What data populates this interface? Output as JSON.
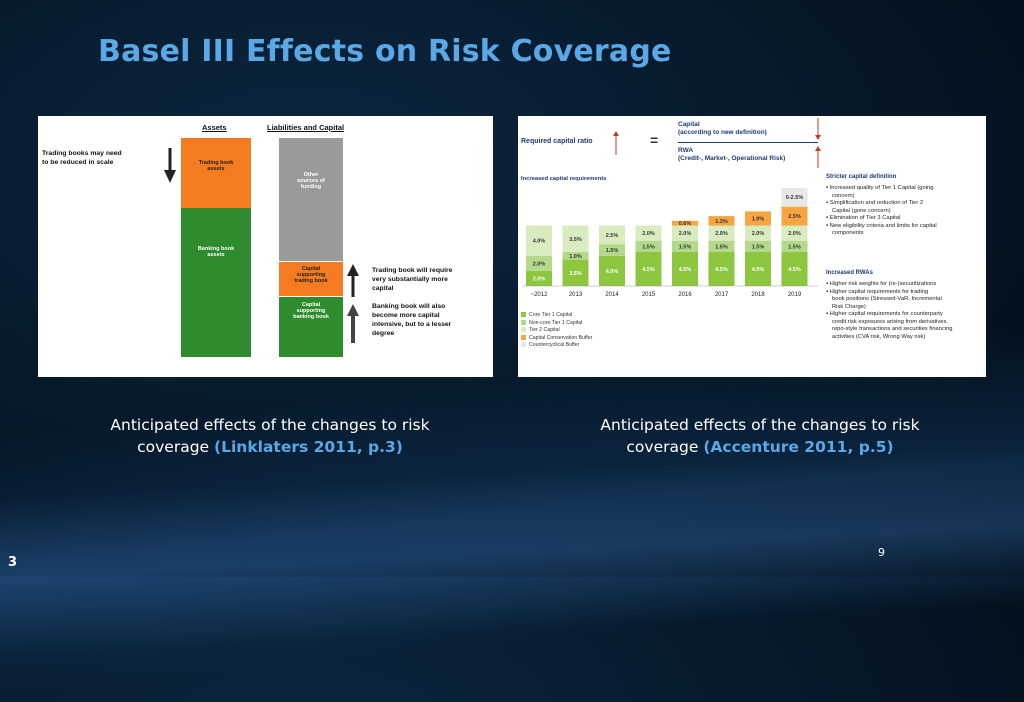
{
  "slide": {
    "title": "Basel III Effects on Risk Coverage",
    "page_number": "3",
    "inner_number": "9"
  },
  "left_figure": {
    "assets_header": "Assets",
    "liab_header": "Liabilities and Capital",
    "left_note_1": "Trading books may need",
    "left_note_2": "to be reduced in scale",
    "trading_book_1": "Trading book",
    "trading_book_2": "assets",
    "banking_book_1": "Banking book",
    "banking_book_2": "assets",
    "other_1": "Other",
    "other_2": "sources of",
    "other_3": "funding",
    "cap_trading_1": "Capital",
    "cap_trading_2": "supporting",
    "cap_trading_3": "trading book",
    "cap_banking_1": "Capital",
    "cap_banking_2": "supporting",
    "cap_banking_3": "banking book",
    "right_note_1a": "Trading book will require",
    "right_note_1b": "very substantially more",
    "right_note_1c": "capital",
    "right_note_2a": "Banking book will also",
    "right_note_2b": "become more capital",
    "right_note_2c": "intensive, but to a lesser",
    "right_note_2d": "degree",
    "colors": {
      "orange": "#f47b20",
      "green": "#2e8b2e",
      "gray": "#9a9a9a",
      "dark": "#222222"
    }
  },
  "right_figure": {
    "required_ratio": "Required capital ratio",
    "equals": "=",
    "capital_1": "Capital",
    "capital_2": "(according to new definition)",
    "rwa_1": "RWA",
    "rwa_2": "(Credit-, Market-, Operational Risk)",
    "increased_label": "Increased capital requirements",
    "stricter_heading": "Stricter capital definition",
    "stricter_bullets": [
      "Increased quality of Tier 1 Capital (going",
      "concern)",
      "Simplification and reduction of Tier 2",
      "Capital (gone concern)",
      "Elimination of Tier 3 Capital",
      "New eligibility criteria and limits for capital",
      "components"
    ],
    "rwa_heading": "Increased RWAs",
    "rwa_bullets": [
      "Higher risk weights for (re-)securitizations",
      "Higher capital requirements for trading",
      "book positions (Stressed-VaR, Incremental",
      "Risk Charge)",
      "Higher capital requirements for counterparty",
      "credit risk exposures arising from derivatives,",
      "repo-style transactions and securities financing",
      "activities (CVA risk, Wrong Way risk)"
    ],
    "legend": [
      "Core Tier 1 Capital",
      "Non-core Tier 1 Capital",
      "Tier 2 Capital",
      "Capital Conservation Buffer",
      "Countercyclical Buffer"
    ],
    "colors": {
      "core": "#8dc63f",
      "noncore": "#b5d98a",
      "tier2": "#d9ecbf",
      "conservation": "#f7a541",
      "countercyclical": "#e8e8e8"
    }
  },
  "chart_data": {
    "type": "bar",
    "title": "Increased capital requirements",
    "categories": [
      "~2012",
      "2013",
      "2014",
      "2015",
      "2016",
      "2017",
      "2018",
      "2019"
    ],
    "series": [
      {
        "name": "Core Tier 1 Capital",
        "values": [
          2.0,
          3.5,
          4.0,
          4.5,
          4.5,
          4.5,
          4.5,
          4.5
        ],
        "labels": [
          "2.0%",
          "3.5%",
          "4.0%",
          "4.5%",
          "4.5%",
          "4.5%",
          "4.5%",
          "4.5%"
        ]
      },
      {
        "name": "Non-core Tier 1 Capital",
        "values": [
          2.0,
          1.0,
          1.5,
          1.5,
          1.5,
          1.5,
          1.5,
          1.5
        ],
        "labels": [
          "2.0%",
          "1.0%",
          "1.5%",
          "1.5%",
          "1.5%",
          "1.5%",
          "1.5%",
          "1.5%"
        ]
      },
      {
        "name": "Tier 2 Capital",
        "values": [
          4.0,
          3.5,
          2.5,
          2.0,
          2.0,
          2.0,
          2.0,
          2.0
        ],
        "labels": [
          "4.0%",
          "3.5%",
          "2.5%",
          "2.0%",
          "2.0%",
          "2.0%",
          "2.0%",
          "2.0%"
        ]
      },
      {
        "name": "Capital Conservation Buffer",
        "values": [
          0,
          0,
          0,
          0,
          0.625,
          1.25,
          1.875,
          2.5
        ],
        "labels": [
          "",
          "",
          "",
          "",
          "0.6%",
          "1.3%",
          "1.9%",
          "2.5%"
        ]
      },
      {
        "name": "Countercyclical Buffer",
        "values": [
          0,
          0,
          0,
          0,
          0,
          0,
          0,
          2.5
        ],
        "labels": [
          "",
          "",
          "",
          "",
          "",
          "",
          "",
          "0-2.5%"
        ]
      }
    ],
    "ylim": [
      0,
      13.5
    ]
  },
  "captions": {
    "left_1": "Anticipated effects of the changes to risk",
    "left_2": "coverage",
    "left_cite": "(Linklaters 2011, p.3)",
    "right_1": "Anticipated effects of the changes to risk",
    "right_2": "coverage",
    "right_cite": "(Accenture 2011, p.5)"
  }
}
